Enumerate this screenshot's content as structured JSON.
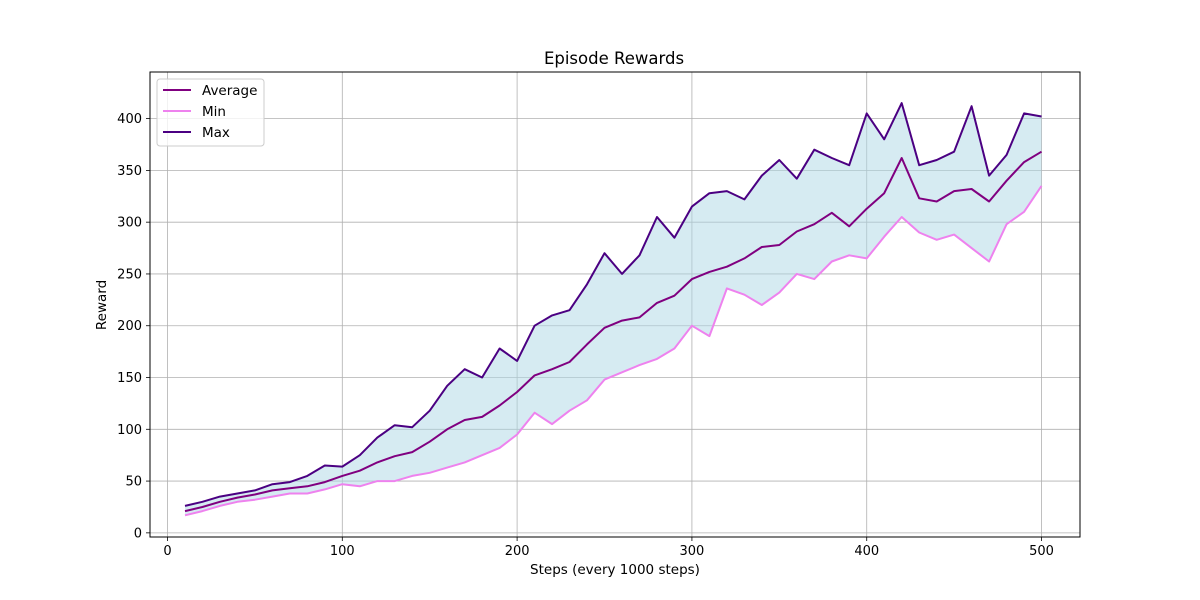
{
  "chart_data": {
    "type": "line",
    "title": "Episode Rewards",
    "xlabel": "Steps (every 1000 steps)",
    "ylabel": "Reward",
    "xlim": [
      -10,
      522
    ],
    "ylim": [
      -4,
      445
    ],
    "xticks": [
      0,
      100,
      200,
      300,
      400,
      500
    ],
    "yticks": [
      0,
      50,
      100,
      150,
      200,
      250,
      300,
      350,
      400
    ],
    "grid": true,
    "legend_position": "upper left",
    "fill_between": {
      "lower": "Min",
      "upper": "Max",
      "color": "#add8e6",
      "opacity": 0.5
    },
    "x": [
      10,
      20,
      30,
      40,
      50,
      60,
      70,
      80,
      90,
      100,
      110,
      120,
      130,
      140,
      150,
      160,
      170,
      180,
      190,
      200,
      210,
      220,
      230,
      240,
      250,
      260,
      270,
      280,
      290,
      300,
      310,
      320,
      330,
      340,
      350,
      360,
      370,
      380,
      390,
      400,
      410,
      420,
      430,
      440,
      450,
      460,
      470,
      480,
      490,
      500
    ],
    "series": [
      {
        "name": "Average",
        "color": "#800080",
        "values": [
          21,
          25,
          30,
          34,
          37,
          41,
          43,
          45,
          49,
          55,
          60,
          68,
          74,
          78,
          88,
          100,
          109,
          112,
          123,
          136,
          152,
          158,
          165,
          182,
          198,
          205,
          208,
          222,
          229,
          245,
          252,
          257,
          265,
          276,
          278,
          291,
          298,
          309,
          296,
          313,
          328,
          362,
          323,
          320,
          330,
          332,
          320,
          340,
          358,
          368
        ]
      },
      {
        "name": "Min",
        "color": "#ee82ee",
        "values": [
          17,
          21,
          26,
          30,
          32,
          35,
          38,
          38,
          42,
          47,
          45,
          50,
          50,
          55,
          58,
          63,
          68,
          75,
          82,
          95,
          116,
          105,
          118,
          128,
          148,
          155,
          162,
          168,
          178,
          200,
          190,
          236,
          230,
          220,
          232,
          250,
          245,
          262,
          268,
          265,
          286,
          305,
          290,
          283,
          288,
          275,
          262,
          298,
          310,
          335
        ]
      },
      {
        "name": "Max",
        "color": "#4b0082",
        "values": [
          26,
          30,
          35,
          38,
          41,
          47,
          49,
          55,
          65,
          64,
          75,
          92,
          104,
          102,
          118,
          142,
          158,
          150,
          178,
          166,
          200,
          210,
          215,
          240,
          270,
          250,
          268,
          305,
          285,
          315,
          328,
          330,
          322,
          345,
          360,
          342,
          370,
          362,
          355,
          405,
          380,
          415,
          355,
          360,
          368,
          412,
          345,
          365,
          405,
          402
        ]
      }
    ]
  }
}
